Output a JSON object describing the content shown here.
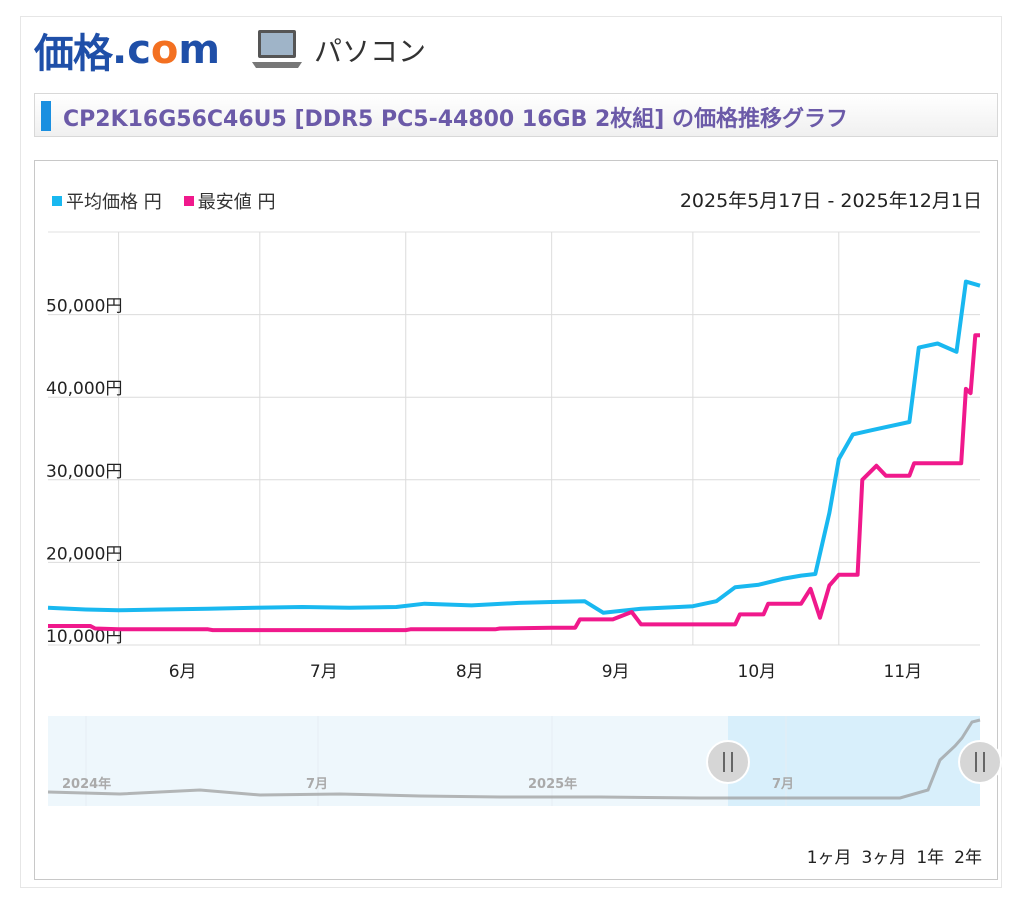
{
  "header": {
    "logo_kakaku": "価格",
    "logo_dot": ".",
    "logo_c": "c",
    "logo_o": "o",
    "logo_m": "m",
    "category_icon": "laptop-icon",
    "category_label": "パソコン"
  },
  "title": "CP2K16G56C46U5 [DDR5 PC5-44800 16GB 2枚組] の価格推移グラフ",
  "legend": [
    {
      "label": "平均価格 円",
      "color": "#19b8f0"
    },
    {
      "label": "最安値 円",
      "color": "#f0198c"
    }
  ],
  "date_range": "2025年5月17日 - 2025年12月1日",
  "range_buttons": [
    "1ヶ月",
    "3ヶ月",
    "1年",
    "2年"
  ],
  "navigator_labels": [
    "2024年",
    "7月",
    "2025年",
    "7月"
  ],
  "colors": {
    "avg": "#19b8f0",
    "min": "#f0198c",
    "accent": "#1a8fe0",
    "title": "#6b5aa8"
  },
  "chart_data": {
    "type": "line",
    "title": "",
    "xlabel": "",
    "ylabel": "",
    "y_ticks": [
      10000,
      20000,
      30000,
      40000,
      50000
    ],
    "y_tick_labels": [
      "10,000円",
      "20,000円",
      "30,000円",
      "40,000円",
      "50,000円"
    ],
    "ylim": [
      10000,
      60000
    ],
    "xlim": [
      "2025-05-17",
      "2025-12-01"
    ],
    "x_tick_labels": [
      "6月",
      "7月",
      "8月",
      "9月",
      "10月",
      "11月"
    ],
    "x_ticks": [
      "2025-06-01",
      "2025-07-01",
      "2025-08-01",
      "2025-09-01",
      "2025-10-01",
      "2025-11-01"
    ],
    "grid": true,
    "legend_position": "top-left",
    "series": [
      {
        "name": "平均価格 円",
        "color": "#19b8f0",
        "points": [
          [
            "2025-05-17",
            14500
          ],
          [
            "2025-05-25",
            14300
          ],
          [
            "2025-06-01",
            14200
          ],
          [
            "2025-06-10",
            14300
          ],
          [
            "2025-06-20",
            14400
          ],
          [
            "2025-06-30",
            14500
          ],
          [
            "2025-07-10",
            14600
          ],
          [
            "2025-07-20",
            14500
          ],
          [
            "2025-07-30",
            14600
          ],
          [
            "2025-08-05",
            15000
          ],
          [
            "2025-08-15",
            14800
          ],
          [
            "2025-08-25",
            15100
          ],
          [
            "2025-09-01",
            15200
          ],
          [
            "2025-09-08",
            15300
          ],
          [
            "2025-09-12",
            13900
          ],
          [
            "2025-09-20",
            14400
          ],
          [
            "2025-09-28",
            14600
          ],
          [
            "2025-10-01",
            14700
          ],
          [
            "2025-10-06",
            15300
          ],
          [
            "2025-10-10",
            17000
          ],
          [
            "2025-10-15",
            17300
          ],
          [
            "2025-10-20",
            18000
          ],
          [
            "2025-10-24",
            18400
          ],
          [
            "2025-10-27",
            18600
          ],
          [
            "2025-10-30",
            26000
          ],
          [
            "2025-11-01",
            32500
          ],
          [
            "2025-11-04",
            35500
          ],
          [
            "2025-11-08",
            36000
          ],
          [
            "2025-11-12",
            36500
          ],
          [
            "2025-11-16",
            37000
          ],
          [
            "2025-11-18",
            46000
          ],
          [
            "2025-11-22",
            46500
          ],
          [
            "2025-11-26",
            45500
          ],
          [
            "2025-11-28",
            54000
          ],
          [
            "2025-12-01",
            53500
          ]
        ]
      },
      {
        "name": "最安値 円",
        "color": "#f0198c",
        "points": [
          [
            "2025-05-17",
            12300
          ],
          [
            "2025-05-26",
            12300
          ],
          [
            "2025-05-27",
            12000
          ],
          [
            "2025-06-01",
            11900
          ],
          [
            "2025-06-20",
            11900
          ],
          [
            "2025-06-21",
            11800
          ],
          [
            "2025-08-01",
            11800
          ],
          [
            "2025-08-02",
            11900
          ],
          [
            "2025-08-20",
            11900
          ],
          [
            "2025-08-21",
            12000
          ],
          [
            "2025-09-01",
            12100
          ],
          [
            "2025-09-06",
            12100
          ],
          [
            "2025-09-07",
            13100
          ],
          [
            "2025-09-14",
            13100
          ],
          [
            "2025-09-18",
            14000
          ],
          [
            "2025-09-20",
            12500
          ],
          [
            "2025-10-10",
            12500
          ],
          [
            "2025-10-11",
            13700
          ],
          [
            "2025-10-16",
            13700
          ],
          [
            "2025-10-17",
            15000
          ],
          [
            "2025-10-24",
            15000
          ],
          [
            "2025-10-26",
            16800
          ],
          [
            "2025-10-28",
            13300
          ],
          [
            "2025-10-30",
            17200
          ],
          [
            "2025-11-01",
            18500
          ],
          [
            "2025-11-05",
            18500
          ],
          [
            "2025-11-06",
            30000
          ],
          [
            "2025-11-09",
            31700
          ],
          [
            "2025-11-11",
            30500
          ],
          [
            "2025-11-16",
            30500
          ],
          [
            "2025-11-17",
            32000
          ],
          [
            "2025-11-27",
            32000
          ],
          [
            "2025-11-28",
            41000
          ],
          [
            "2025-11-29",
            40500
          ],
          [
            "2025-11-30",
            47500
          ],
          [
            "2025-12-01",
            47500
          ]
        ]
      }
    ]
  }
}
